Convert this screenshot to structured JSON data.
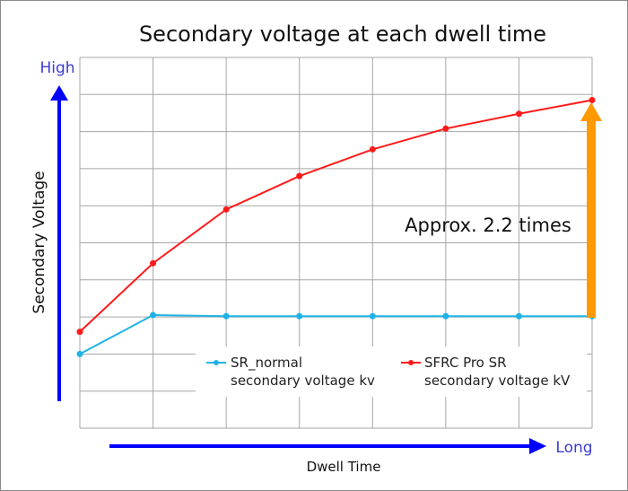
{
  "chart_data": {
    "type": "line",
    "title": "Secondary voltage at each dwell time",
    "xlabel": "Dwell Time",
    "ylabel": "Secondary Voltage",
    "x_arrow_label": "Long",
    "y_arrow_label": "High",
    "annotation": "Approx. 2.2 times",
    "x": [
      0,
      1,
      2,
      3,
      4,
      5,
      6,
      7
    ],
    "xlim": [
      0,
      7
    ],
    "ylim": [
      0,
      10
    ],
    "grid": true,
    "legend_position": "lower-right",
    "series": [
      {
        "name_line1": "SR_normal",
        "name_line2": "secondary voltage kv",
        "color": "#1fb3e6",
        "values": [
          2.0,
          3.05,
          3.02,
          3.02,
          3.02,
          3.02,
          3.02,
          3.02
        ]
      },
      {
        "name_line1": "SFRC Pro SR",
        "name_line2": "secondary voltage kV",
        "color": "#ff1a1a",
        "values": [
          2.6,
          4.45,
          5.9,
          6.8,
          7.52,
          8.08,
          8.48,
          8.85
        ]
      }
    ],
    "colors": {
      "axis_arrow": "#0000ff",
      "axis_word": "#3b3bd6",
      "highlight_arrow": "#ff9900",
      "grid": "#a6a6a6"
    }
  }
}
